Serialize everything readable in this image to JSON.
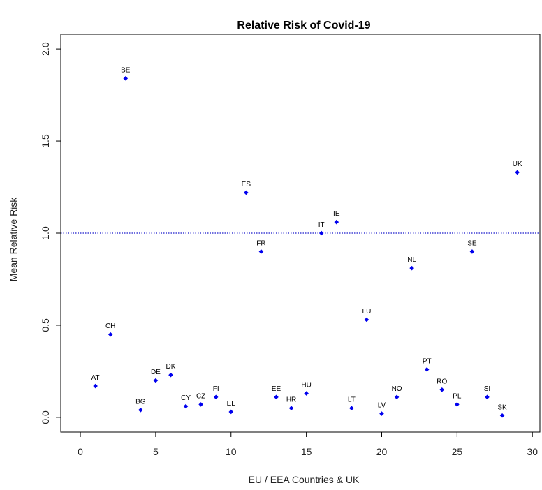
{
  "chart_data": {
    "type": "scatter",
    "title": "Relative Risk of Covid-19",
    "xlabel": "EU / EEA Countries & UK",
    "ylabel": "Mean Relative Risk",
    "xlim": [
      -1.3,
      30.5
    ],
    "ylim": [
      -0.08,
      2.08
    ],
    "xticks": [
      0,
      5,
      10,
      15,
      20,
      25,
      30
    ],
    "yticks": [
      0.0,
      0.5,
      1.0,
      1.5,
      2.0
    ],
    "ytick_labels": [
      "0.0",
      "0.5",
      "1.0",
      "1.5",
      "2.0"
    ],
    "reference_line": {
      "y": 1.0,
      "style": "dotted",
      "color": "#1a1acc"
    },
    "point_color": "#0000ee",
    "grid": false,
    "points": [
      {
        "label": "AT",
        "x": 1,
        "y": 0.17
      },
      {
        "label": "CH",
        "x": 2,
        "y": 0.45
      },
      {
        "label": "BE",
        "x": 3,
        "y": 1.84
      },
      {
        "label": "BG",
        "x": 4,
        "y": 0.04
      },
      {
        "label": "DE",
        "x": 5,
        "y": 0.2
      },
      {
        "label": "DK",
        "x": 6,
        "y": 0.23
      },
      {
        "label": "CY",
        "x": 7,
        "y": 0.06
      },
      {
        "label": "CZ",
        "x": 8,
        "y": 0.07
      },
      {
        "label": "FI",
        "x": 9,
        "y": 0.11
      },
      {
        "label": "EL",
        "x": 10,
        "y": 0.03
      },
      {
        "label": "ES",
        "x": 11,
        "y": 1.22
      },
      {
        "label": "FR",
        "x": 12,
        "y": 0.9
      },
      {
        "label": "EE",
        "x": 13,
        "y": 0.11
      },
      {
        "label": "HR",
        "x": 14,
        "y": 0.05
      },
      {
        "label": "HU",
        "x": 15,
        "y": 0.13
      },
      {
        "label": "IT",
        "x": 16,
        "y": 1.0
      },
      {
        "label": "IE",
        "x": 17,
        "y": 1.06
      },
      {
        "label": "LT",
        "x": 18,
        "y": 0.05
      },
      {
        "label": "LU",
        "x": 19,
        "y": 0.53
      },
      {
        "label": "LV",
        "x": 20,
        "y": 0.02
      },
      {
        "label": "NO",
        "x": 21,
        "y": 0.11
      },
      {
        "label": "NL",
        "x": 22,
        "y": 0.81
      },
      {
        "label": "PT",
        "x": 23,
        "y": 0.26
      },
      {
        "label": "RO",
        "x": 24,
        "y": 0.15
      },
      {
        "label": "PL",
        "x": 25,
        "y": 0.07
      },
      {
        "label": "SE",
        "x": 26,
        "y": 0.9
      },
      {
        "label": "SI",
        "x": 27,
        "y": 0.11
      },
      {
        "label": "SK",
        "x": 28,
        "y": 0.01
      },
      {
        "label": "UK",
        "x": 29,
        "y": 1.33
      }
    ]
  }
}
